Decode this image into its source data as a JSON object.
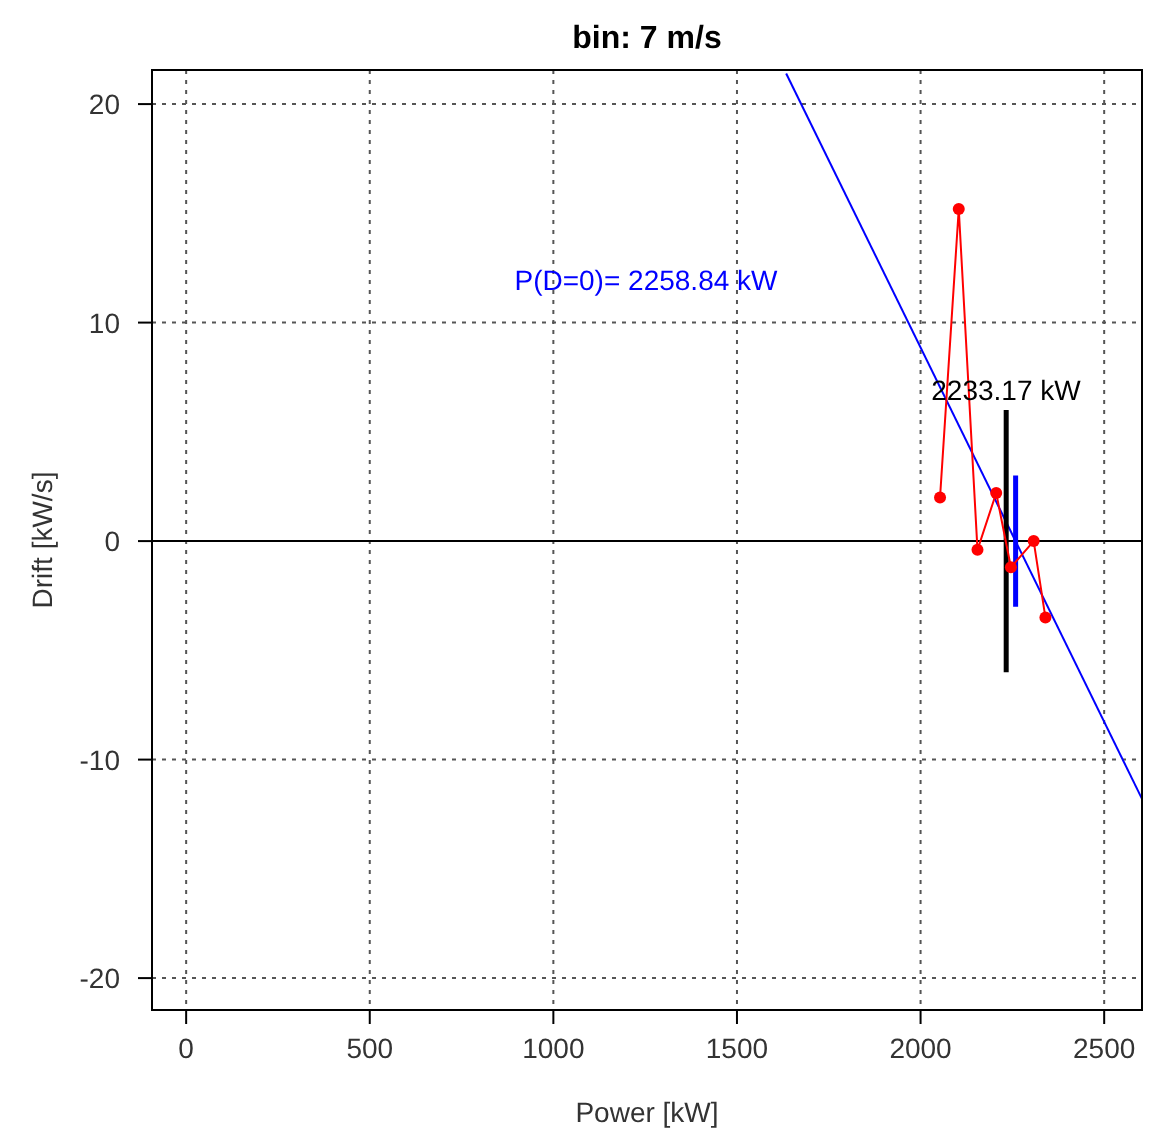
{
  "chart_data": {
    "type": "line",
    "title": "bin:  7 m/s",
    "xlabel": "Power [kW]",
    "ylabel": "Drift [kW/s]",
    "xlim": [
      -93,
      2603
    ],
    "ylim": [
      -21.46,
      21.56
    ],
    "xticks": [
      0,
      500,
      1000,
      1500,
      2000,
      2500
    ],
    "yticks": [
      -20,
      -10,
      0,
      10,
      20
    ],
    "grid": true,
    "series": [
      {
        "color": "#ff0000",
        "marker": "circle",
        "x": [
          2053,
          2104,
          2155,
          2206,
          2246,
          2308,
          2340
        ],
        "values": [
          2.0,
          15.2,
          -0.4,
          2.2,
          -1.2,
          0.0,
          -3.5
        ]
      },
      {
        "color": "#0000ff",
        "marker": "none",
        "x": [
          1634,
          2603
        ],
        "values": [
          21.4,
          -11.8
        ]
      },
      {
        "color": "#000000",
        "marker": "none",
        "x": [
          2233.17,
          2233.17
        ],
        "values": [
          6,
          -6
        ]
      },
      {
        "color": "#0000ff",
        "marker": "none",
        "x": [
          2258.84,
          2258.84
        ],
        "values": [
          3,
          -3
        ]
      }
    ],
    "ref_lines": [
      {
        "axis": "y",
        "value": 0,
        "color": "#000000"
      }
    ],
    "annotations": [
      "P(D=0)= 2258.84 kW",
      "2233.17 kW"
    ]
  }
}
